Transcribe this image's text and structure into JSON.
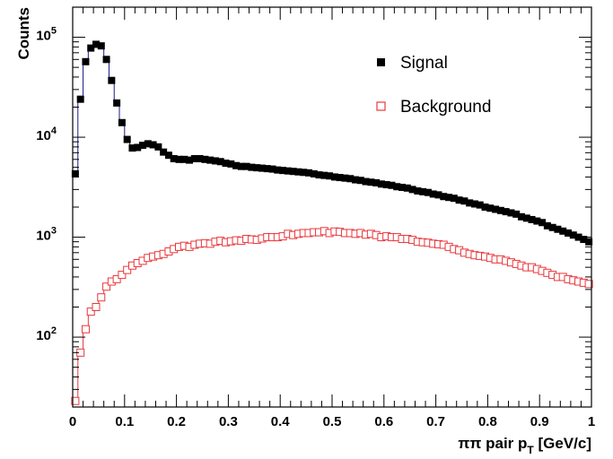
{
  "chart_data": {
    "type": "scatter",
    "xlabel": "ππ pair p",
    "xlabel_sub": "T",
    "xlabel_unit": " [GeV/c]",
    "ylabel": "Counts",
    "xlim": [
      0,
      1
    ],
    "ylim": [
      20,
      200000
    ],
    "yscale": "log",
    "grid": false,
    "legend_position": "top-right",
    "x_ticks": [
      "0",
      "0.1",
      "0.2",
      "0.3",
      "0.4",
      "0.5",
      "0.6",
      "0.7",
      "0.8",
      "0.9",
      "1"
    ],
    "y_ticks": [
      {
        "base": "10",
        "exp": "2",
        "value": 100
      },
      {
        "base": "10",
        "exp": "3",
        "value": 1000
      },
      {
        "base": "10",
        "exp": "4",
        "value": 10000
      },
      {
        "base": "10",
        "exp": "5",
        "value": 100000
      }
    ],
    "series": [
      {
        "name": "Signal",
        "color": "#000000",
        "line_color": "#1a1a8c",
        "marker": "filled-square",
        "x": [
          0.005,
          0.015,
          0.025,
          0.035,
          0.045,
          0.055,
          0.065,
          0.075,
          0.085,
          0.095,
          0.105,
          0.115,
          0.125,
          0.135,
          0.145,
          0.155,
          0.165,
          0.175,
          0.185,
          0.195,
          0.205,
          0.215,
          0.225,
          0.235,
          0.245,
          0.255,
          0.265,
          0.275,
          0.285,
          0.295,
          0.305,
          0.315,
          0.325,
          0.335,
          0.345,
          0.355,
          0.365,
          0.375,
          0.385,
          0.395,
          0.405,
          0.415,
          0.425,
          0.435,
          0.445,
          0.455,
          0.465,
          0.475,
          0.485,
          0.495,
          0.505,
          0.515,
          0.525,
          0.535,
          0.545,
          0.555,
          0.565,
          0.575,
          0.585,
          0.595,
          0.605,
          0.615,
          0.625,
          0.635,
          0.645,
          0.655,
          0.665,
          0.675,
          0.685,
          0.695,
          0.705,
          0.715,
          0.725,
          0.735,
          0.745,
          0.755,
          0.765,
          0.775,
          0.785,
          0.795,
          0.805,
          0.815,
          0.825,
          0.835,
          0.845,
          0.855,
          0.865,
          0.875,
          0.885,
          0.895,
          0.905,
          0.915,
          0.925,
          0.935,
          0.945,
          0.955,
          0.965,
          0.975,
          0.985,
          0.995
        ],
        "y": [
          4300,
          24000,
          57000,
          78000,
          85000,
          82000,
          60000,
          37000,
          22000,
          14000,
          9500,
          7800,
          7900,
          8300,
          8600,
          8400,
          8000,
          7100,
          6600,
          6100,
          6000,
          6000,
          5900,
          6100,
          6100,
          6000,
          5900,
          5800,
          5700,
          5500,
          5400,
          5200,
          5100,
          5100,
          5000,
          4950,
          4900,
          4850,
          4800,
          4700,
          4650,
          4600,
          4550,
          4500,
          4450,
          4400,
          4300,
          4200,
          4150,
          4100,
          4000,
          3950,
          3900,
          3850,
          3750,
          3700,
          3600,
          3550,
          3500,
          3400,
          3350,
          3300,
          3200,
          3150,
          3100,
          3000,
          2900,
          2850,
          2800,
          2700,
          2650,
          2550,
          2500,
          2450,
          2350,
          2300,
          2200,
          2150,
          2100,
          2000,
          1950,
          1900,
          1850,
          1800,
          1750,
          1700,
          1600,
          1550,
          1500,
          1450,
          1400,
          1300,
          1250,
          1200,
          1150,
          1100,
          1050,
          1000,
          950,
          900
        ]
      },
      {
        "name": "Background",
        "color": "#e8383d",
        "line_color": "#e8383d",
        "marker": "open-square",
        "x": [
          0.005,
          0.015,
          0.025,
          0.035,
          0.045,
          0.055,
          0.065,
          0.075,
          0.085,
          0.095,
          0.105,
          0.115,
          0.125,
          0.135,
          0.145,
          0.155,
          0.165,
          0.175,
          0.185,
          0.195,
          0.205,
          0.215,
          0.225,
          0.235,
          0.245,
          0.255,
          0.265,
          0.275,
          0.285,
          0.295,
          0.305,
          0.315,
          0.325,
          0.335,
          0.345,
          0.355,
          0.365,
          0.375,
          0.385,
          0.395,
          0.405,
          0.415,
          0.425,
          0.435,
          0.445,
          0.455,
          0.465,
          0.475,
          0.485,
          0.495,
          0.505,
          0.515,
          0.525,
          0.535,
          0.545,
          0.555,
          0.565,
          0.575,
          0.585,
          0.595,
          0.605,
          0.615,
          0.625,
          0.635,
          0.645,
          0.655,
          0.665,
          0.675,
          0.685,
          0.695,
          0.705,
          0.715,
          0.725,
          0.735,
          0.745,
          0.755,
          0.765,
          0.775,
          0.785,
          0.795,
          0.805,
          0.815,
          0.825,
          0.835,
          0.845,
          0.855,
          0.865,
          0.875,
          0.885,
          0.895,
          0.905,
          0.915,
          0.925,
          0.935,
          0.945,
          0.955,
          0.965,
          0.975,
          0.985,
          0.995
        ],
        "y": [
          23,
          70,
          120,
          180,
          200,
          250,
          320,
          360,
          380,
          420,
          470,
          520,
          550,
          580,
          620,
          640,
          660,
          680,
          720,
          760,
          800,
          820,
          800,
          840,
          860,
          870,
          860,
          900,
          920,
          890,
          910,
          930,
          920,
          960,
          950,
          940,
          970,
          1000,
          1000,
          1000,
          1020,
          1080,
          1050,
          1080,
          1100,
          1100,
          1120,
          1120,
          1150,
          1100,
          1140,
          1130,
          1100,
          1100,
          1080,
          1100,
          1060,
          1080,
          1050,
          1000,
          1020,
          1000,
          1000,
          960,
          960,
          940,
          900,
          890,
          880,
          860,
          850,
          840,
          800,
          760,
          740,
          700,
          680,
          660,
          650,
          640,
          620,
          600,
          600,
          580,
          560,
          540,
          520,
          500,
          500,
          480,
          460,
          440,
          420,
          400,
          400,
          380,
          370,
          360,
          350,
          340
        ]
      }
    ]
  }
}
